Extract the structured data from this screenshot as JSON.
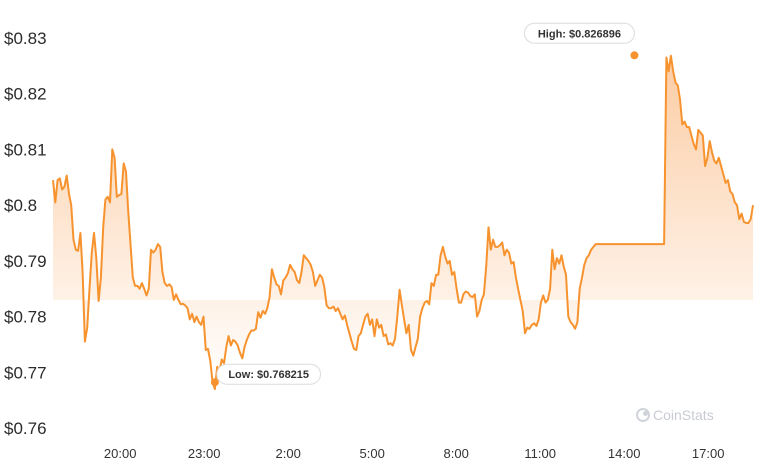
{
  "chart_data": {
    "type": "area",
    "x_tick_labels": [
      "20:00",
      "23:00",
      "2:00",
      "5:00",
      "8:00",
      "11:00",
      "14:00",
      "17:00"
    ],
    "y_tick_labels": [
      "$0.83",
      "$0.82",
      "$0.81",
      "$0.8",
      "$0.79",
      "$0.78",
      "$0.77",
      "$0.76"
    ],
    "y_ticks": [
      0.83,
      0.82,
      0.81,
      0.8,
      0.79,
      0.78,
      0.77,
      0.76
    ],
    "ylim": [
      0.76,
      0.83
    ],
    "x_hours_since_midnight": {
      "start": 17.6,
      "end": 18.6,
      "wraps_next_day": true
    },
    "series": [
      {
        "color": "#f7932f",
        "values": [
          0.8045,
          0.8005,
          0.8045,
          0.8048,
          0.8028,
          0.8033,
          0.8053,
          0.802,
          0.8,
          0.7938,
          0.792,
          0.7918,
          0.795,
          0.788,
          0.7755,
          0.778,
          0.785,
          0.7915,
          0.795,
          0.7905,
          0.7828,
          0.787,
          0.796,
          0.801,
          0.8015,
          0.8005,
          0.81,
          0.8085,
          0.8015,
          0.8018,
          0.802,
          0.8075,
          0.806,
          0.799,
          0.793,
          0.787,
          0.7855,
          0.7855,
          0.785,
          0.786,
          0.785,
          0.7838,
          0.785,
          0.792,
          0.7915,
          0.792,
          0.793,
          0.7925,
          0.788,
          0.786,
          0.7855,
          0.7858,
          0.7853,
          0.783,
          0.784,
          0.783,
          0.7822,
          0.7823,
          0.782,
          0.7815,
          0.7795,
          0.7805,
          0.779,
          0.78,
          0.779,
          0.7785,
          0.78,
          0.774,
          0.7742,
          0.772,
          0.7682,
          0.767,
          0.771,
          0.77,
          0.7723,
          0.7716,
          0.7745,
          0.7765,
          0.7748,
          0.7758,
          0.7755,
          0.7748,
          0.7735,
          0.7725,
          0.7745,
          0.7758,
          0.7768,
          0.7775,
          0.7775,
          0.7778,
          0.7808,
          0.7798,
          0.781,
          0.7805,
          0.7815,
          0.7835,
          0.7885,
          0.787,
          0.7858,
          0.7855,
          0.784,
          0.7865,
          0.787,
          0.7878,
          0.7893,
          0.7885,
          0.788,
          0.7865,
          0.786,
          0.788,
          0.791,
          0.7905,
          0.79,
          0.7893,
          0.788,
          0.7855,
          0.7865,
          0.7875,
          0.787,
          0.7853,
          0.782,
          0.7815,
          0.7815,
          0.7818,
          0.781,
          0.7815,
          0.7805,
          0.7795,
          0.7802,
          0.7785,
          0.777,
          0.7755,
          0.7742,
          0.774,
          0.7765,
          0.777,
          0.7785,
          0.78,
          0.7805,
          0.7785,
          0.7795,
          0.7765,
          0.7795,
          0.778,
          0.7785,
          0.7765,
          0.7768,
          0.775,
          0.7752,
          0.7748,
          0.776,
          0.78,
          0.7848,
          0.782,
          0.7795,
          0.777,
          0.7785,
          0.774,
          0.773,
          0.7745,
          0.776,
          0.78,
          0.7815,
          0.7825,
          0.7828,
          0.7822,
          0.786,
          0.7855,
          0.7875,
          0.7875,
          0.791,
          0.7925,
          0.7908,
          0.7895,
          0.79,
          0.7875,
          0.788,
          0.785,
          0.7825,
          0.7825,
          0.784,
          0.7845,
          0.7843,
          0.7837,
          0.7835,
          0.784,
          0.78,
          0.781,
          0.783,
          0.784,
          0.789,
          0.796,
          0.792,
          0.7938,
          0.7925,
          0.7925,
          0.7928,
          0.7933,
          0.791,
          0.792,
          0.7915,
          0.7895,
          0.7898,
          0.787,
          0.785,
          0.783,
          0.781,
          0.777,
          0.778,
          0.7778,
          0.7785,
          0.7788,
          0.7783,
          0.7795,
          0.7825,
          0.7838,
          0.7825,
          0.783,
          0.785,
          0.792,
          0.7885,
          0.7905,
          0.7895,
          0.791,
          0.789,
          0.7875,
          0.78,
          0.779,
          0.7785,
          0.7778,
          0.779,
          0.785,
          0.787,
          0.7893,
          0.7905,
          0.791,
          0.792,
          0.7925,
          0.793,
          0.793,
          0.793,
          0.793,
          0.793,
          0.793,
          0.793,
          0.793,
          0.793,
          0.793,
          0.793,
          0.793,
          0.793,
          0.793,
          0.793,
          0.793,
          0.793,
          0.793,
          0.793,
          0.793,
          0.793,
          0.793,
          0.793,
          0.793,
          0.793,
          0.793,
          0.793,
          0.793,
          0.793,
          0.793,
          0.793,
          0.8265,
          0.824,
          0.8268,
          0.824,
          0.822,
          0.8215,
          0.819,
          0.8145,
          0.815,
          0.814,
          0.814,
          0.8125,
          0.811,
          0.81,
          0.8135,
          0.813,
          0.8125,
          0.807,
          0.8085,
          0.8115,
          0.8095,
          0.808,
          0.8075,
          0.8085,
          0.807,
          0.8055,
          0.804,
          0.8045,
          0.8025,
          0.802,
          0.8005,
          0.8,
          0.7975,
          0.7985,
          0.797,
          0.7968,
          0.7968,
          0.7975,
          0.8
        ],
        "high": {
          "label": "High: $0.826896",
          "value": 0.826896,
          "index": 255
        },
        "low": {
          "label": "Low: $0.768215",
          "value": 0.768215,
          "index": 71
        }
      }
    ]
  },
  "watermark": {
    "text": "CoinStats",
    "icon": "coinstats-logo-icon"
  },
  "colors": {
    "line": "#f7932f",
    "fill": "#f9a35a",
    "text": "#2b2b2b"
  }
}
